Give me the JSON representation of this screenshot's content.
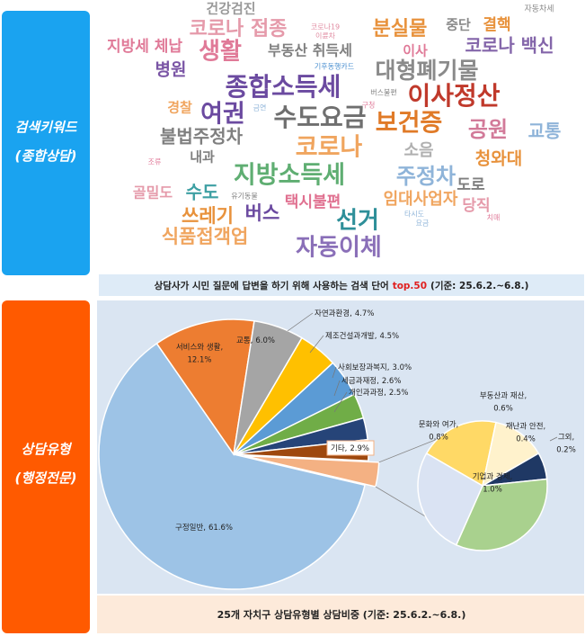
{
  "keywords": {
    "label": [
      "검색키워드",
      "(종합상담)"
    ],
    "words": [
      {
        "text": "건강검진",
        "color": "#9a9a9a"
      },
      {
        "text": "자동차세",
        "color": "#8a8a8a"
      },
      {
        "text": "코로나19",
        "color": "#e08aa0"
      },
      {
        "text": "이륜차",
        "color": "#e08aa0"
      },
      {
        "text": "코로나 접종",
        "color": "#e59aaa"
      },
      {
        "text": "중단",
        "color": "#8a8a8a"
      },
      {
        "text": "결핵",
        "color": "#e8923c"
      },
      {
        "text": "분실물",
        "color": "#e8923c"
      },
      {
        "text": "지방세 체납",
        "color": "#e07a98"
      },
      {
        "text": "생활",
        "color": "#e07a98"
      },
      {
        "text": "부동산 취득세",
        "color": "#7f7f7f"
      },
      {
        "text": "이사",
        "color": "#e07a98"
      },
      {
        "text": "코로나 백신",
        "color": "#8466aa"
      },
      {
        "text": "병원",
        "color": "#7a55a5"
      },
      {
        "text": "기후동행카드",
        "color": "#4a8fd0"
      },
      {
        "text": "대형폐기물",
        "color": "#8a8a8a"
      },
      {
        "text": "종합소득세",
        "color": "#6b4aa0"
      },
      {
        "text": "버스불편",
        "color": "#7f7f7f"
      },
      {
        "text": "이사정산",
        "color": "#c0392b"
      },
      {
        "text": "경찰",
        "color": "#f0a55f"
      },
      {
        "text": "금연",
        "color": "#8fb4d9"
      },
      {
        "text": "여권",
        "color": "#6b4aa0"
      },
      {
        "text": "수도요금",
        "color": "#6f6f6f"
      },
      {
        "text": "보건증",
        "color": "#e07a27"
      },
      {
        "text": "공원",
        "color": "#d27a99"
      },
      {
        "text": "교통",
        "color": "#8fb4d9"
      },
      {
        "text": "불법주정차",
        "color": "#7f7f7f"
      },
      {
        "text": "코로나",
        "color": "#f0a55f"
      },
      {
        "text": "소음",
        "color": "#b0b0b0"
      },
      {
        "text": "청와대",
        "color": "#e8923c"
      },
      {
        "text": "조류",
        "color": "#e07a98"
      },
      {
        "text": "내과",
        "color": "#7f7f7f"
      },
      {
        "text": "지방소득세",
        "color": "#5fae72"
      },
      {
        "text": "주정차",
        "color": "#8fb4d9"
      },
      {
        "text": "골밀도",
        "color": "#e59aaa"
      },
      {
        "text": "수도",
        "color": "#3ea0a3"
      },
      {
        "text": "유기동물",
        "color": "#7f7f7f"
      },
      {
        "text": "도로",
        "color": "#7f7f7f"
      },
      {
        "text": "택시불편",
        "color": "#e07090"
      },
      {
        "text": "임대사업자",
        "color": "#f0a55f"
      },
      {
        "text": "당직",
        "color": "#e59aaa"
      },
      {
        "text": "타시도",
        "color": "#8fb4d9"
      },
      {
        "text": "쓰레기",
        "color": "#e8923c"
      },
      {
        "text": "버스",
        "color": "#6b4aa0"
      },
      {
        "text": "선거",
        "color": "#2e8f99"
      },
      {
        "text": "요금",
        "color": "#8fb4d9"
      },
      {
        "text": "치매",
        "color": "#e07a98"
      },
      {
        "text": "식품접객업",
        "color": "#f0a55f"
      },
      {
        "text": "구청",
        "color": "#e07a98"
      },
      {
        "text": "자동이체",
        "color": "#8a6fb8"
      }
    ],
    "caption": [
      "상담사가 시민 질문에 답변을 하기 위해 사용하는 검색 단어",
      "top.50",
      "(기준: 25.6.2.~6.8.)"
    ]
  },
  "consult": {
    "label": [
      "상담유형",
      "(행정전문)"
    ]
  },
  "chart_data": {
    "type": "pie-of-pie",
    "caption": "25개 자치구 상담유형별 상담비중 (기준: 25.6.2.~6.8.)",
    "categories": [
      "구정일반,",
      "서비스와 생활,",
      "교통,",
      "자연과환경,",
      "제조건설과개발,",
      "사회보장과복지,",
      "세금과재정,",
      "개인과과정,",
      "기타,"
    ],
    "values": [
      61.6,
      12.1,
      6.0,
      4.7,
      4.5,
      3.0,
      2.6,
      2.5,
      2.9
    ],
    "value_labels": [
      "61.6%",
      "12.1%",
      "6.0%",
      "4.7%",
      "4.5%",
      "3.0%",
      "2.6%",
      "2.5%",
      "2.9%"
    ],
    "colors": [
      "#9dc3e6",
      "#ed7d31",
      "#a5a5a5",
      "#ffc000",
      "#5b9bd5",
      "#70ad47",
      "#264478",
      "#9e480e",
      "#f4b183"
    ],
    "sub": {
      "categories": [
        "부동산과 재산,",
        "재난과 안전,",
        "그외,",
        "기업과 경제,",
        "문화와 여가,"
      ],
      "values": [
        0.6,
        0.4,
        0.2,
        1.0,
        0.8
      ],
      "value_labels": [
        "0.6%",
        "0.4%",
        "0.2%",
        "1.0%",
        "0.8%"
      ],
      "colors": [
        "#ffd966",
        "#fff2cc",
        "#1f3864",
        "#a9d18e",
        "#dae3f3"
      ]
    }
  }
}
